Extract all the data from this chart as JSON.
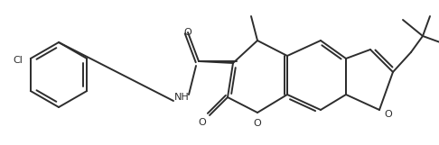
{
  "line_color": "#2d2d2d",
  "bg_color": "#ffffff",
  "line_width": 1.4,
  "figsize": [
    4.86,
    1.61
  ],
  "dpi": 100,
  "xlim": [
    0,
    486
  ],
  "ylim": [
    0,
    161
  ]
}
